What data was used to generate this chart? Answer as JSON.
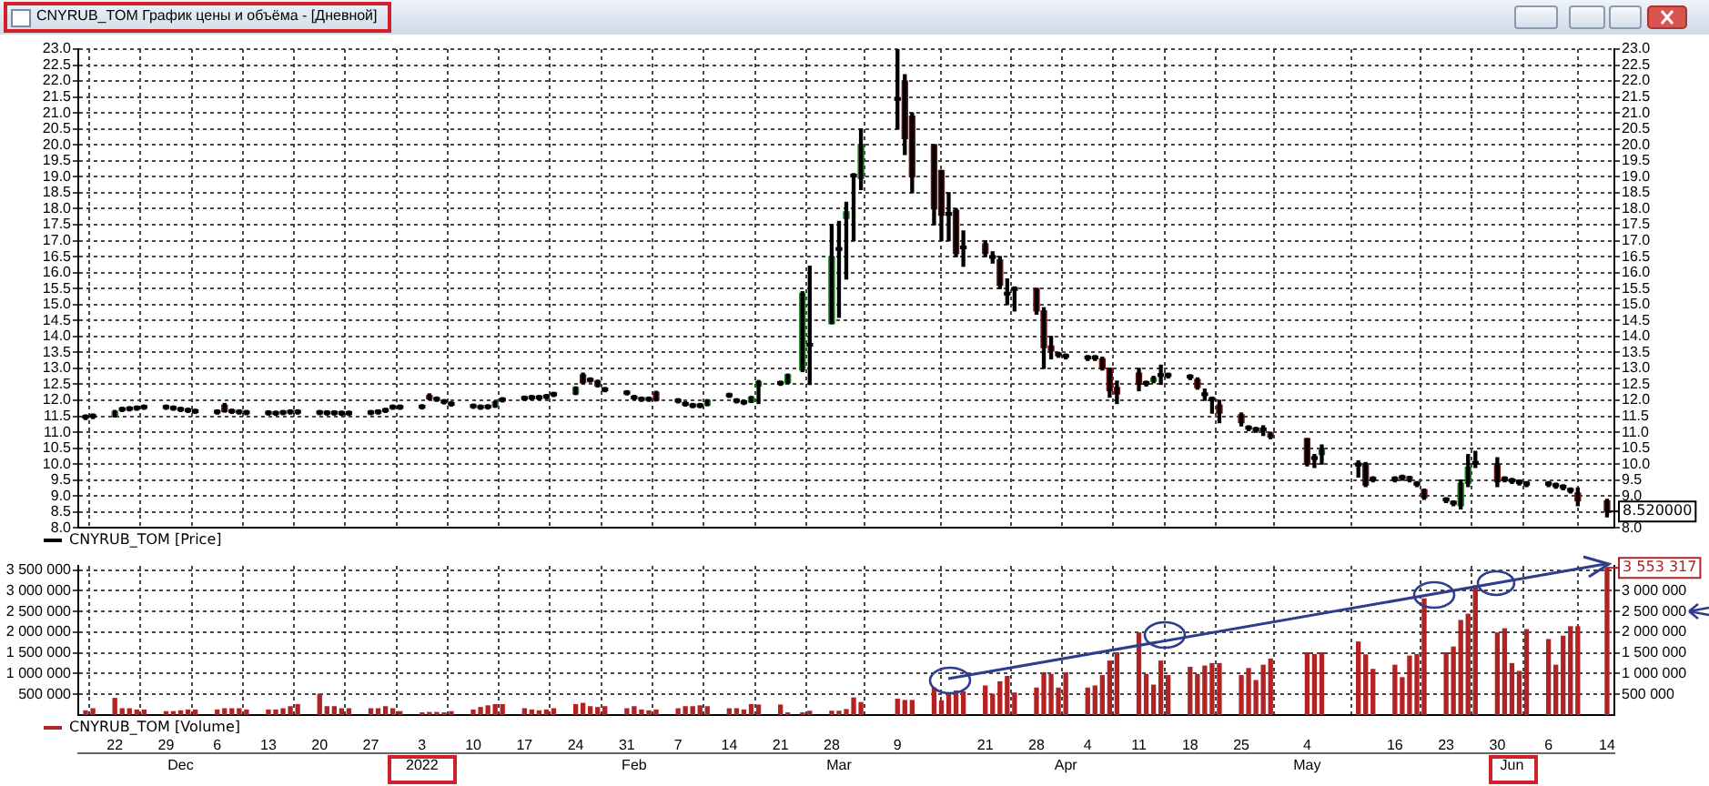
{
  "chart_data": [
    {
      "type": "candlestick",
      "title": "CNYRUB_TOM График цены и объёма - [Дневной]",
      "x": [
        "2021-11-18",
        "2021-11-19",
        "2021-11-22",
        "2021-11-23",
        "2021-11-24",
        "2021-11-25",
        "2021-11-26",
        "2021-11-29",
        "2021-11-30",
        "2021-12-01",
        "2021-12-02",
        "2021-12-03",
        "2021-12-06",
        "2021-12-07",
        "2021-12-08",
        "2021-12-09",
        "2021-12-10",
        "2021-12-13",
        "2021-12-14",
        "2021-12-15",
        "2021-12-16",
        "2021-12-17",
        "2021-12-20",
        "2021-12-21",
        "2021-12-22",
        "2021-12-23",
        "2021-12-24",
        "2021-12-27",
        "2021-12-28",
        "2021-12-29",
        "2021-12-30",
        "2021-12-31",
        "2022-01-03",
        "2022-01-04",
        "2022-01-05",
        "2022-01-06",
        "2022-01-07",
        "2022-01-10",
        "2022-01-11",
        "2022-01-12",
        "2022-01-13",
        "2022-01-14",
        "2022-01-17",
        "2022-01-18",
        "2022-01-19",
        "2022-01-20",
        "2022-01-21",
        "2022-01-24",
        "2022-01-25",
        "2022-01-26",
        "2022-01-27",
        "2022-01-28",
        "2022-01-31",
        "2022-02-01",
        "2022-02-02",
        "2022-02-03",
        "2022-02-04",
        "2022-02-07",
        "2022-02-08",
        "2022-02-09",
        "2022-02-10",
        "2022-02-11",
        "2022-02-14",
        "2022-02-15",
        "2022-02-16",
        "2022-02-17",
        "2022-02-18",
        "2022-02-21",
        "2022-02-22",
        "2022-02-24",
        "2022-02-25",
        "2022-02-28",
        "2022-03-01",
        "2022-03-02",
        "2022-03-03",
        "2022-03-04",
        "2022-03-09",
        "2022-03-10",
        "2022-03-11",
        "2022-03-14",
        "2022-03-15",
        "2022-03-16",
        "2022-03-17",
        "2022-03-18",
        "2022-03-21",
        "2022-03-22",
        "2022-03-23",
        "2022-03-24",
        "2022-03-25",
        "2022-03-28",
        "2022-03-29",
        "2022-03-30",
        "2022-03-31",
        "2022-04-01",
        "2022-04-04",
        "2022-04-05",
        "2022-04-06",
        "2022-04-07",
        "2022-04-08",
        "2022-04-11",
        "2022-04-12",
        "2022-04-13",
        "2022-04-14",
        "2022-04-15",
        "2022-04-18",
        "2022-04-19",
        "2022-04-20",
        "2022-04-21",
        "2022-04-22",
        "2022-04-25",
        "2022-04-26",
        "2022-04-27",
        "2022-04-28",
        "2022-04-29",
        "2022-05-04",
        "2022-05-05",
        "2022-05-06",
        "2022-05-11",
        "2022-05-12",
        "2022-05-13",
        "2022-05-16",
        "2022-05-17",
        "2022-05-18",
        "2022-05-19",
        "2022-05-20",
        "2022-05-23",
        "2022-05-24",
        "2022-05-25",
        "2022-05-26",
        "2022-05-27",
        "2022-05-30",
        "2022-05-31",
        "2022-06-01",
        "2022-06-02",
        "2022-06-03",
        "2022-06-06",
        "2022-06-07",
        "2022-06-08",
        "2022-06-09",
        "2022-06-10",
        "2022-06-14"
      ],
      "series": [
        {
          "name": "CNYRUB_TOM [Price]",
          "color": "#000000",
          "colors": [
            "#000000",
            "#000000",
            "#1f7a1f",
            "#000000",
            "#000000",
            "#000000",
            "#000000",
            "#000000",
            "#000000",
            "#000000",
            "#000000",
            "#000000",
            "#000000",
            "#701414",
            "#000000",
            "#000000",
            "#000000",
            "#000000",
            "#000000",
            "#000000",
            "#000000",
            "#000000",
            "#000000",
            "#000000",
            "#000000",
            "#000000",
            "#000000",
            "#000000",
            "#000000",
            "#000000",
            "#000000",
            "#000000",
            "#000000",
            "#701414",
            "#000000",
            "#000000",
            "#000000",
            "#000000",
            "#000000",
            "#000000",
            "#1f7a1f",
            "#000000",
            "#000000",
            "#000000",
            "#000000",
            "#000000",
            "#000000",
            "#1f7a1f",
            "#701414",
            "#000000",
            "#701414",
            "#000000",
            "#000000",
            "#000000",
            "#000000",
            "#000000",
            "#701414",
            "#000000",
            "#000000",
            "#000000",
            "#000000",
            "#1f7a1f",
            "#000000",
            "#000000",
            "#000000",
            "#1f7a1f",
            "#1f7a1f",
            "#000000",
            "#1f7a1f",
            "#1f7a1f",
            "#000000",
            "#1f7a1f",
            "#000000",
            "#1f7a1f",
            "#000000",
            "#1f7a1f",
            "#000000",
            "#701414",
            "#701414",
            "#701414",
            "#701414",
            "#000000",
            "#701414",
            "#000000",
            "#701414",
            "#000000",
            "#701414",
            "#000000",
            "#000000",
            "#701414",
            "#701414",
            "#701414",
            "#000000",
            "#000000",
            "#000000",
            "#000000",
            "#701414",
            "#701414",
            "#701414",
            "#701414",
            "#000000",
            "#1f7a1f",
            "#000000",
            "#000000",
            "#000000",
            "#701414",
            "#000000",
            "#000000",
            "#701414",
            "#701414",
            "#000000",
            "#000000",
            "#000000",
            "#701414",
            "#701414",
            "#000000",
            "#1f7a1f",
            "#000000",
            "#701414",
            "#000000",
            "#000000",
            "#000000",
            "#701414",
            "#000000",
            "#701414",
            "#000000",
            "#000000",
            "#1f7a1f",
            "#1f7a1f",
            "#000000",
            "#701414",
            "#000000",
            "#000000",
            "#000000",
            "#000000",
            "#000000",
            "#000000",
            "#000000",
            "#000000",
            "#701414",
            "#701414"
          ],
          "ohlc": [
            [
              11.52,
              11.54,
              11.4,
              11.44
            ],
            [
              11.55,
              11.57,
              11.43,
              11.47
            ],
            [
              11.5,
              11.68,
              11.48,
              11.65
            ],
            [
              11.76,
              11.78,
              11.65,
              11.68
            ],
            [
              11.78,
              11.8,
              11.67,
              11.7
            ],
            [
              11.8,
              11.82,
              11.69,
              11.72
            ],
            [
              11.83,
              11.85,
              11.72,
              11.75
            ],
            [
              11.83,
              11.85,
              11.72,
              11.75
            ],
            [
              11.8,
              11.82,
              11.69,
              11.72
            ],
            [
              11.76,
              11.78,
              11.65,
              11.68
            ],
            [
              11.73,
              11.75,
              11.62,
              11.65
            ],
            [
              11.7,
              11.72,
              11.59,
              11.62
            ],
            [
              11.68,
              11.7,
              11.57,
              11.6
            ],
            [
              11.85,
              11.9,
              11.63,
              11.65
            ],
            [
              11.7,
              11.72,
              11.59,
              11.62
            ],
            [
              11.68,
              11.7,
              11.57,
              11.6
            ],
            [
              11.66,
              11.68,
              11.55,
              11.58
            ],
            [
              11.65,
              11.67,
              11.54,
              11.57
            ],
            [
              11.64,
              11.66,
              11.53,
              11.56
            ],
            [
              11.66,
              11.68,
              11.55,
              11.58
            ],
            [
              11.68,
              11.7,
              11.57,
              11.6
            ],
            [
              11.68,
              11.7,
              11.57,
              11.6
            ],
            [
              11.66,
              11.68,
              11.55,
              11.58
            ],
            [
              11.65,
              11.67,
              11.54,
              11.57
            ],
            [
              11.65,
              11.67,
              11.54,
              11.57
            ],
            [
              11.64,
              11.66,
              11.53,
              11.56
            ],
            [
              11.64,
              11.66,
              11.53,
              11.56
            ],
            [
              11.66,
              11.68,
              11.55,
              11.58
            ],
            [
              11.68,
              11.7,
              11.57,
              11.6
            ],
            [
              11.73,
              11.75,
              11.62,
              11.65
            ],
            [
              11.83,
              11.85,
              11.72,
              11.75
            ],
            [
              11.83,
              11.85,
              11.72,
              11.75
            ],
            [
              11.84,
              11.86,
              11.73,
              11.76
            ],
            [
              12.15,
              12.2,
              12.02,
              12.05
            ],
            [
              12.08,
              12.1,
              11.97,
              12.0
            ],
            [
              12.0,
              12.02,
              11.89,
              11.92
            ],
            [
              11.93,
              11.95,
              11.82,
              11.85
            ],
            [
              11.86,
              11.88,
              11.75,
              11.78
            ],
            [
              11.83,
              11.85,
              11.72,
              11.75
            ],
            [
              11.84,
              11.86,
              11.73,
              11.76
            ],
            [
              11.8,
              11.97,
              11.78,
              11.95
            ],
            [
              12.06,
              12.08,
              11.95,
              11.98
            ],
            [
              12.11,
              12.13,
              12.0,
              12.03
            ],
            [
              12.13,
              12.15,
              12.02,
              12.05
            ],
            [
              12.13,
              12.15,
              12.02,
              12.05
            ],
            [
              12.16,
              12.18,
              12.05,
              12.08
            ],
            [
              12.23,
              12.25,
              12.12,
              12.15
            ],
            [
              12.2,
              12.42,
              12.18,
              12.4
            ],
            [
              12.8,
              12.85,
              12.52,
              12.55
            ],
            [
              12.68,
              12.7,
              12.57,
              12.6
            ],
            [
              12.6,
              12.63,
              12.42,
              12.45
            ],
            [
              12.38,
              12.4,
              12.27,
              12.3
            ],
            [
              12.28,
              12.3,
              12.17,
              12.2
            ],
            [
              12.13,
              12.15,
              12.02,
              12.05
            ],
            [
              12.08,
              12.1,
              11.97,
              12.0
            ],
            [
              12.08,
              12.1,
              11.97,
              12.0
            ],
            [
              12.25,
              12.28,
              11.98,
              12.0
            ],
            [
              12.03,
              12.05,
              11.92,
              11.95
            ],
            [
              11.93,
              11.95,
              11.82,
              11.85
            ],
            [
              11.88,
              11.9,
              11.77,
              11.8
            ],
            [
              11.88,
              11.9,
              11.77,
              11.8
            ],
            [
              11.85,
              12.02,
              11.83,
              12.0
            ],
            [
              12.2,
              12.22,
              12.09,
              12.12
            ],
            [
              12.03,
              12.05,
              11.92,
              11.95
            ],
            [
              11.98,
              12.0,
              11.87,
              11.9
            ],
            [
              11.95,
              12.12,
              11.93,
              12.1
            ],
            [
              12.45,
              12.62,
              11.9,
              12.58
            ],
            [
              12.58,
              12.6,
              12.47,
              12.5
            ],
            [
              12.55,
              12.82,
              12.52,
              12.8
            ],
            [
              12.95,
              15.4,
              12.9,
              15.35
            ],
            [
              13.78,
              16.2,
              12.5,
              13.7
            ],
            [
              14.4,
              17.5,
              14.4,
              16.5
            ],
            [
              16.78,
              17.6,
              14.6,
              16.7
            ],
            [
              17.7,
              18.2,
              15.8,
              17.9
            ],
            [
              19.08,
              19.1,
              17.0,
              19.0
            ],
            [
              18.95,
              20.5,
              18.6,
              20.0
            ],
            [
              21.48,
              23.0,
              20.5,
              21.4
            ],
            [
              22.0,
              22.2,
              19.7,
              20.2
            ],
            [
              20.9,
              21.0,
              18.5,
              19.0
            ],
            [
              20.0,
              20.0,
              17.5,
              18.0
            ],
            [
              19.2,
              19.2,
              17.0,
              17.8
            ],
            [
              17.88,
              18.5,
              17.0,
              17.8
            ],
            [
              17.95,
              18.0,
              16.5,
              16.6
            ],
            [
              16.83,
              17.3,
              16.2,
              16.75
            ],
            [
              16.9,
              17.0,
              16.5,
              16.6
            ],
            [
              16.53,
              16.65,
              16.3,
              16.45
            ],
            [
              16.4,
              16.5,
              15.5,
              15.6
            ],
            [
              15.38,
              15.8,
              15.0,
              15.3
            ],
            [
              15.53,
              15.55,
              14.8,
              15.45
            ],
            [
              15.5,
              15.5,
              14.7,
              14.8
            ],
            [
              14.8,
              14.9,
              13.0,
              13.65
            ],
            [
              13.7,
              14.0,
              13.3,
              13.55
            ],
            [
              13.48,
              13.5,
              13.35,
              13.4
            ],
            [
              13.43,
              13.45,
              13.3,
              13.35
            ],
            [
              13.38,
              13.4,
              13.25,
              13.3
            ],
            [
              13.38,
              13.4,
              13.25,
              13.3
            ],
            [
              13.3,
              13.35,
              12.95,
              13.0
            ],
            [
              13.0,
              13.0,
              12.1,
              12.3
            ],
            [
              12.4,
              12.6,
              11.9,
              12.2
            ],
            [
              12.85,
              13.0,
              12.3,
              12.5
            ],
            [
              12.58,
              12.6,
              12.45,
              12.5
            ],
            [
              12.6,
              12.75,
              12.55,
              12.7
            ],
            [
              12.83,
              13.1,
              12.5,
              12.75
            ],
            [
              12.83,
              12.85,
              12.7,
              12.75
            ],
            [
              12.78,
              12.8,
              12.65,
              12.7
            ],
            [
              12.65,
              12.7,
              12.35,
              12.4
            ],
            [
              12.23,
              12.35,
              12.0,
              12.15
            ],
            [
              12.08,
              12.1,
              11.6,
              12.0
            ],
            [
              11.85,
              12.0,
              11.3,
              11.6
            ],
            [
              11.55,
              11.6,
              11.2,
              11.3
            ],
            [
              11.18,
              11.2,
              11.05,
              11.1
            ],
            [
              11.13,
              11.15,
              11.0,
              11.05
            ],
            [
              11.13,
              11.2,
              10.9,
              11.05
            ],
            [
              10.95,
              11.0,
              10.8,
              10.85
            ],
            [
              10.8,
              10.8,
              9.95,
              10.0
            ],
            [
              10.23,
              10.3,
              9.9,
              10.15
            ],
            [
              10.3,
              10.6,
              10.0,
              10.5
            ],
            [
              10.03,
              10.1,
              9.6,
              9.95
            ],
            [
              10.0,
              10.05,
              9.3,
              9.35
            ],
            [
              9.58,
              9.6,
              9.45,
              9.5
            ],
            [
              9.58,
              9.6,
              9.45,
              9.5
            ],
            [
              9.63,
              9.65,
              9.5,
              9.55
            ],
            [
              9.6,
              9.62,
              9.45,
              9.5
            ],
            [
              9.43,
              9.45,
              9.3,
              9.35
            ],
            [
              9.2,
              9.22,
              8.9,
              8.95
            ],
            [
              8.93,
              8.95,
              8.8,
              8.85
            ],
            [
              8.83,
              8.85,
              8.7,
              8.75
            ],
            [
              8.7,
              9.5,
              8.6,
              9.4
            ],
            [
              9.4,
              10.3,
              9.3,
              9.9
            ],
            [
              10.08,
              10.4,
              9.9,
              10.0
            ],
            [
              10.0,
              10.2,
              9.3,
              9.45
            ],
            [
              9.58,
              9.6,
              9.45,
              9.5
            ],
            [
              9.53,
              9.55,
              9.4,
              9.45
            ],
            [
              9.48,
              9.5,
              9.35,
              9.4
            ],
            [
              9.43,
              9.45,
              9.3,
              9.35
            ],
            [
              9.43,
              9.45,
              9.3,
              9.35
            ],
            [
              9.38,
              9.4,
              9.25,
              9.3
            ],
            [
              9.33,
              9.35,
              9.2,
              9.25
            ],
            [
              9.23,
              9.25,
              9.1,
              9.15
            ],
            [
              9.1,
              9.25,
              8.7,
              8.85
            ],
            [
              8.85,
              8.9,
              8.35,
              8.52
            ]
          ]
        }
      ],
      "xlim": [
        "2021-11-17",
        "2022-06-15"
      ],
      "xticks": [
        {
          "value": "2021-11-22",
          "label": null
        },
        {
          "value": "2021-11-29",
          "label": null
        },
        {
          "value": "2021-12-06",
          "label": null
        },
        {
          "value": "2021-12-13",
          "label": null
        },
        {
          "value": "2021-12-20",
          "label": null
        },
        {
          "value": "2021-12-27",
          "label": null
        },
        {
          "value": "2022-01-03",
          "label": null
        },
        {
          "value": "2022-01-10",
          "label": null
        },
        {
          "value": "2022-01-17",
          "label": null
        },
        {
          "value": "2022-01-24",
          "label": null
        },
        {
          "value": "2022-01-31",
          "label": null
        },
        {
          "value": "2022-02-07",
          "label": null
        },
        {
          "value": "2022-02-14",
          "label": null
        },
        {
          "value": "2022-02-21",
          "label": null
        },
        {
          "value": "2022-02-28",
          "label": null
        },
        {
          "value": "2022-03-09",
          "label": null
        },
        {
          "value": "2022-03-21",
          "label": null
        },
        {
          "value": "2022-03-28",
          "label": null
        },
        {
          "value": "2022-04-04",
          "label": null
        },
        {
          "value": "2022-04-11",
          "label": null
        },
        {
          "value": "2022-04-18",
          "label": null
        },
        {
          "value": "2022-04-25",
          "label": null
        },
        {
          "value": "2022-05-04",
          "label": null
        },
        {
          "value": "2022-05-16",
          "label": null
        },
        {
          "value": "2022-05-23",
          "label": null
        },
        {
          "value": "2022-05-30",
          "label": null
        },
        {
          "value": "2022-06-06",
          "label": null
        },
        {
          "value": "2022-06-14",
          "label": null
        }
      ],
      "ylim": [
        8,
        23
      ],
      "yticks": [
        {
          "value": 8,
          "label": "8.0"
        },
        {
          "value": 8.5,
          "label": "8.5"
        },
        {
          "value": 9,
          "label": "9.0"
        },
        {
          "value": 9.5,
          "label": "9.5"
        },
        {
          "value": 10,
          "label": "10.0"
        },
        {
          "value": 10.5,
          "label": "10.5"
        },
        {
          "value": 11,
          "label": "11.0"
        },
        {
          "value": 11.5,
          "label": "11.5"
        },
        {
          "value": 12,
          "label": "12.0"
        },
        {
          "value": 12.5,
          "label": "12.5"
        },
        {
          "value": 13,
          "label": "13.0"
        },
        {
          "value": 13.5,
          "label": "13.5"
        },
        {
          "value": 14,
          "label": "14.0"
        },
        {
          "value": 14.5,
          "label": "14.5"
        },
        {
          "value": 15,
          "label": "15.0"
        },
        {
          "value": 15.5,
          "label": "15.5"
        },
        {
          "value": 16,
          "label": "16.0"
        },
        {
          "value": 16.5,
          "label": "16.5"
        },
        {
          "value": 17,
          "label": "17.0"
        },
        {
          "value": 17.5,
          "label": "17.5"
        },
        {
          "value": 18,
          "label": "18.0"
        },
        {
          "value": 18.5,
          "label": "18.5"
        },
        {
          "value": 19,
          "label": "19.0"
        },
        {
          "value": 19.5,
          "label": "19.5"
        },
        {
          "value": 20,
          "label": "20.0"
        },
        {
          "value": 20.5,
          "label": "20.5"
        },
        {
          "value": 21,
          "label": "21.0"
        },
        {
          "value": 21.5,
          "label": "21.5"
        },
        {
          "value": 22,
          "label": "22.0"
        },
        {
          "value": 22.5,
          "label": "22.5"
        },
        {
          "value": 23,
          "label": "23.0"
        }
      ],
      "y2lim": [
        8,
        23
      ],
      "y2ticks": [
        {
          "value": 8,
          "label": "8.0"
        },
        {
          "value": 9,
          "label": "9.0"
        },
        {
          "value": 9.5,
          "label": "9.5"
        },
        {
          "value": 10,
          "label": "10.0"
        },
        {
          "value": 10.5,
          "label": "10.5"
        },
        {
          "value": 11,
          "label": "11.0"
        },
        {
          "value": 11.5,
          "label": "11.5"
        },
        {
          "value": 12,
          "label": "12.0"
        },
        {
          "value": 12.5,
          "label": "12.5"
        },
        {
          "value": 13,
          "label": "13.0"
        },
        {
          "value": 13.5,
          "label": "13.5"
        },
        {
          "value": 14,
          "label": "14.0"
        },
        {
          "value": 14.5,
          "label": "14.5"
        },
        {
          "value": 15,
          "label": "15.0"
        },
        {
          "value": 15.5,
          "label": "15.5"
        },
        {
          "value": 16,
          "label": "16.0"
        },
        {
          "value": 16.5,
          "label": "16.5"
        },
        {
          "value": 17,
          "label": "17.0"
        },
        {
          "value": 17.5,
          "label": "17.5"
        },
        {
          "value": 18,
          "label": "18.0"
        },
        {
          "value": 18.5,
          "label": "18.5"
        },
        {
          "value": 19,
          "label": "19.0"
        },
        {
          "value": 19.5,
          "label": "19.5"
        },
        {
          "value": 20,
          "label": "20.0"
        },
        {
          "value": 20.5,
          "label": "20.5"
        },
        {
          "value": 21,
          "label": "21.0"
        },
        {
          "value": 21.5,
          "label": "21.5"
        },
        {
          "value": 22,
          "label": "22.0"
        },
        {
          "value": 22.5,
          "label": "22.5"
        },
        {
          "value": 23,
          "label": "23.0"
        }
      ],
      "tick_labels": "y",
      "grid": true,
      "legend": "bottom left",
      "annotations": [
        {
          "text": "8.520000",
          "x": "2022-06-14",
          "y": 8.52
        }
      ]
    },
    {
      "type": "bar",
      "x": [
        "2021-11-18",
        "2021-11-19",
        "2021-11-22",
        "2021-11-23",
        "2021-11-24",
        "2021-11-25",
        "2021-11-26",
        "2021-11-29",
        "2021-11-30",
        "2021-12-01",
        "2021-12-02",
        "2021-12-03",
        "2021-12-06",
        "2021-12-07",
        "2021-12-08",
        "2021-12-09",
        "2021-12-10",
        "2021-12-13",
        "2021-12-14",
        "2021-12-15",
        "2021-12-16",
        "2021-12-17",
        "2021-12-20",
        "2021-12-21",
        "2021-12-22",
        "2021-12-23",
        "2021-12-24",
        "2021-12-27",
        "2021-12-28",
        "2021-12-29",
        "2021-12-30",
        "2021-12-31",
        "2022-01-03",
        "2022-01-04",
        "2022-01-05",
        "2022-01-06",
        "2022-01-07",
        "2022-01-10",
        "2022-01-11",
        "2022-01-12",
        "2022-01-13",
        "2022-01-14",
        "2022-01-17",
        "2022-01-18",
        "2022-01-19",
        "2022-01-20",
        "2022-01-21",
        "2022-01-24",
        "2022-01-25",
        "2022-01-26",
        "2022-01-27",
        "2022-01-28",
        "2022-01-31",
        "2022-02-01",
        "2022-02-02",
        "2022-02-03",
        "2022-02-04",
        "2022-02-07",
        "2022-02-08",
        "2022-02-09",
        "2022-02-10",
        "2022-02-11",
        "2022-02-14",
        "2022-02-15",
        "2022-02-16",
        "2022-02-17",
        "2022-02-18",
        "2022-02-21",
        "2022-02-22",
        "2022-02-24",
        "2022-02-25",
        "2022-02-28",
        "2022-03-01",
        "2022-03-02",
        "2022-03-03",
        "2022-03-04",
        "2022-03-09",
        "2022-03-10",
        "2022-03-11",
        "2022-03-14",
        "2022-03-15",
        "2022-03-16",
        "2022-03-17",
        "2022-03-18",
        "2022-03-21",
        "2022-03-22",
        "2022-03-23",
        "2022-03-24",
        "2022-03-25",
        "2022-03-28",
        "2022-03-29",
        "2022-03-30",
        "2022-03-31",
        "2022-04-01",
        "2022-04-04",
        "2022-04-05",
        "2022-04-06",
        "2022-04-07",
        "2022-04-08",
        "2022-04-11",
        "2022-04-12",
        "2022-04-13",
        "2022-04-14",
        "2022-04-15",
        "2022-04-18",
        "2022-04-19",
        "2022-04-20",
        "2022-04-21",
        "2022-04-22",
        "2022-04-25",
        "2022-04-26",
        "2022-04-27",
        "2022-04-28",
        "2022-04-29",
        "2022-05-04",
        "2022-05-05",
        "2022-05-06",
        "2022-05-11",
        "2022-05-12",
        "2022-05-13",
        "2022-05-16",
        "2022-05-17",
        "2022-05-18",
        "2022-05-19",
        "2022-05-20",
        "2022-05-23",
        "2022-05-24",
        "2022-05-25",
        "2022-05-26",
        "2022-05-27",
        "2022-05-30",
        "2022-05-31",
        "2022-06-01",
        "2022-06-02",
        "2022-06-03",
        "2022-06-06",
        "2022-06-07",
        "2022-06-08",
        "2022-06-09",
        "2022-06-10",
        "2022-06-14"
      ],
      "series": [
        {
          "name": "CNYRUB_TOM [Volume]",
          "color": "#b22222",
          "values": [
            100000,
            150000,
            400000,
            150000,
            150000,
            120000,
            120000,
            80000,
            80000,
            100000,
            120000,
            120000,
            120000,
            150000,
            150000,
            150000,
            120000,
            120000,
            120000,
            150000,
            200000,
            250000,
            500000,
            200000,
            200000,
            150000,
            150000,
            150000,
            150000,
            200000,
            150000,
            80000,
            50000,
            60000,
            60000,
            50000,
            80000,
            120000,
            180000,
            220000,
            250000,
            250000,
            150000,
            120000,
            100000,
            120000,
            150000,
            250000,
            280000,
            200000,
            180000,
            200000,
            150000,
            200000,
            120000,
            100000,
            120000,
            150000,
            200000,
            200000,
            220000,
            200000,
            150000,
            150000,
            120000,
            250000,
            240000,
            240000,
            50000,
            50000,
            90000,
            90000,
            90000,
            130000,
            410000,
            300000,
            380000,
            350000,
            350000,
            650000,
            340000,
            500000,
            580000,
            560000,
            700000,
            500000,
            800000,
            930000,
            530000,
            650000,
            1020000,
            980000,
            650000,
            1020000,
            650000,
            700000,
            950000,
            1300000,
            1500000,
            1980000,
            980000,
            720000,
            1300000,
            950000,
            1150000,
            980000,
            1180000,
            1240000,
            1240000,
            950000,
            1120000,
            830000,
            1200000,
            1350000,
            1500000,
            1460000,
            1500000,
            1760000,
            1450000,
            1100000,
            1200000,
            900000,
            1420000,
            1460000,
            2800000,
            1500000,
            1640000,
            2280000,
            2430000,
            3120000,
            1980000,
            2080000,
            1240000,
            1050000,
            2060000,
            1820000,
            1200000,
            1900000,
            2130000,
            2130000,
            3553317
          ]
        }
      ],
      "xlim": [
        "2021-11-17",
        "2022-06-15"
      ],
      "xticks": [
        {
          "value": "2021-11-22",
          "label": "22"
        },
        {
          "value": "2021-11-29",
          "label": "29"
        },
        {
          "value": "2021-12-06",
          "label": "6"
        },
        {
          "value": "2021-12-13",
          "label": "13"
        },
        {
          "value": "2021-12-20",
          "label": "20"
        },
        {
          "value": "2021-12-27",
          "label": "27"
        },
        {
          "value": "2022-01-03",
          "label": "3"
        },
        {
          "value": "2022-01-10",
          "label": "10"
        },
        {
          "value": "2022-01-17",
          "label": "17"
        },
        {
          "value": "2022-01-24",
          "label": "24"
        },
        {
          "value": "2022-01-31",
          "label": "31"
        },
        {
          "value": "2022-02-07",
          "label": "7"
        },
        {
          "value": "2022-02-14",
          "label": "14"
        },
        {
          "value": "2022-02-21",
          "label": "21"
        },
        {
          "value": "2022-02-28",
          "label": "28"
        },
        {
          "value": "2022-03-09",
          "label": "9"
        },
        {
          "value": "2022-03-21",
          "label": "21"
        },
        {
          "value": "2022-03-28",
          "label": "28"
        },
        {
          "value": "2022-04-04",
          "label": "4"
        },
        {
          "value": "2022-04-11",
          "label": "11"
        },
        {
          "value": "2022-04-18",
          "label": "18"
        },
        {
          "value": "2022-04-25",
          "label": "25"
        },
        {
          "value": "2022-05-04",
          "label": "4"
        },
        {
          "value": "2022-05-16",
          "label": "16"
        },
        {
          "value": "2022-05-23",
          "label": "23"
        },
        {
          "value": "2022-05-30",
          "label": "30"
        },
        {
          "value": "2022-06-06",
          "label": "6"
        },
        {
          "value": "2022-06-14",
          "label": "14"
        }
      ],
      "ylim": [
        0,
        3600000
      ],
      "yticks": [
        {
          "value": 500000,
          "label": "500 000"
        },
        {
          "value": 1000000,
          "label": "1 000 000"
        },
        {
          "value": 1500000,
          "label": "1 500 000"
        },
        {
          "value": 2000000,
          "label": "2 000 000"
        },
        {
          "value": 2500000,
          "label": "2 500 000"
        },
        {
          "value": 3000000,
          "label": "3 000 000"
        },
        {
          "value": 3500000,
          "label": "3 500 000"
        }
      ],
      "y2lim": [
        0,
        3600000
      ],
      "y2ticks": [
        {
          "value": 500000,
          "label": "500 000"
        },
        {
          "value": 1000000,
          "label": "1 000 000"
        },
        {
          "value": 1500000,
          "label": "1 500 000"
        },
        {
          "value": 2000000,
          "label": "2 000 000"
        },
        {
          "value": 2500000,
          "label": "2 500 000"
        },
        {
          "value": 3000000,
          "label": "3 000 000"
        }
      ],
      "grid": true,
      "legend": "bottom left",
      "x2lim": [
        "2021-11-17",
        "2022-06-15"
      ],
      "x2ticks": [
        {
          "value": "2021-12-01",
          "label": "Dec"
        },
        {
          "value": "2022-01-03",
          "label": "2022"
        },
        {
          "value": "2022-02-01",
          "label": "Feb"
        },
        {
          "value": "2022-03-01",
          "label": "Mar"
        },
        {
          "value": "2022-04-01",
          "label": "Apr"
        },
        {
          "value": "2022-05-04",
          "label": "May"
        },
        {
          "value": "2022-06-01",
          "label": "Jun"
        }
      ],
      "annotations": [
        {
          "text": "3 553 317",
          "x": "2022-06-14",
          "y": 3553317
        }
      ]
    }
  ]
}
